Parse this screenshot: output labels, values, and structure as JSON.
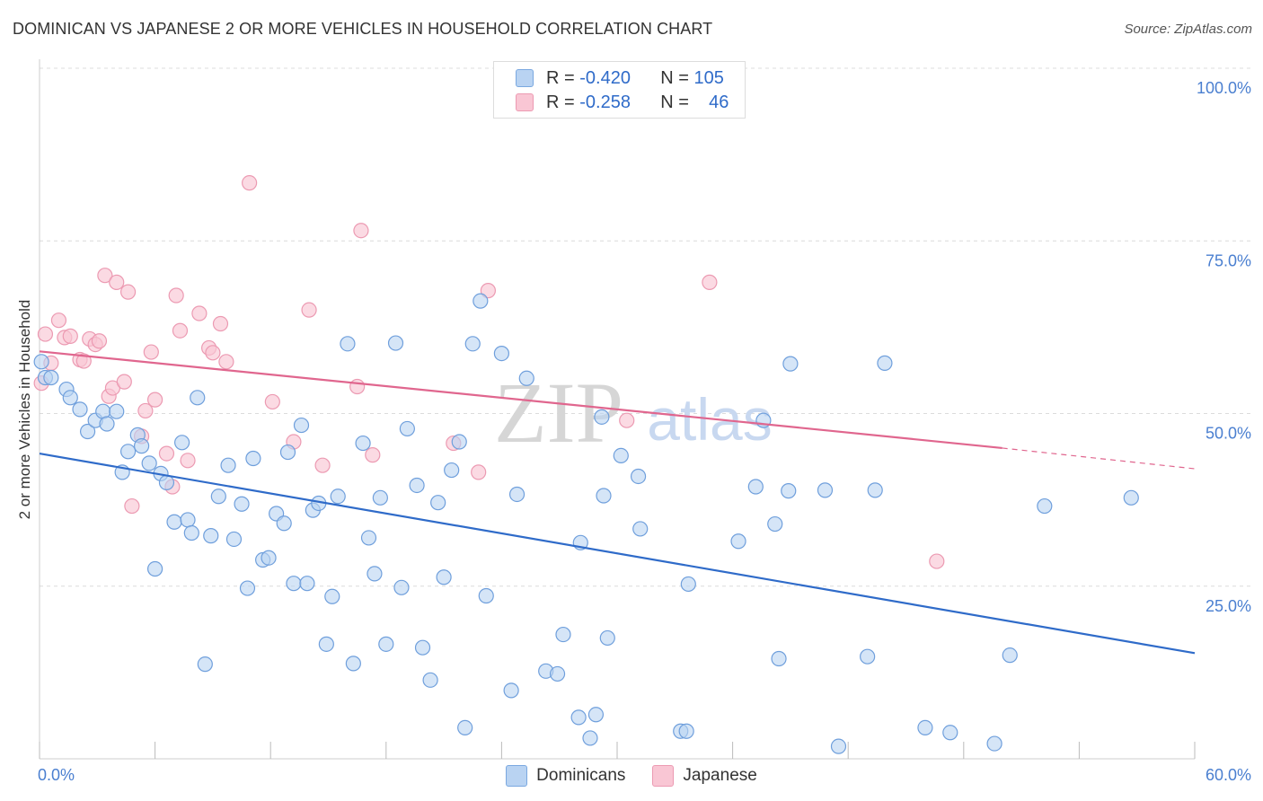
{
  "title": "DOMINICAN VS JAPANESE 2 OR MORE VEHICLES IN HOUSEHOLD CORRELATION CHART",
  "source": "Source: ZipAtlas.com",
  "watermark": {
    "part1": "ZIP",
    "part2": "atlas"
  },
  "stats": [
    {
      "r_label": "R =",
      "r_value": "-0.420",
      "n_label": "N =",
      "n_value": "105"
    },
    {
      "r_label": "R =",
      "r_value": "-0.258",
      "n_label": "N =",
      "n_value": "46"
    }
  ],
  "legend": {
    "dominicans": "Dominicans",
    "japanese": "Japanese"
  },
  "chart_data": {
    "type": "scatter",
    "ylabel": "2 or more Vehicles in Household",
    "xlim": [
      0,
      60
    ],
    "ylim": [
      0,
      100
    ],
    "x_tick_labels": [
      "0.0%",
      "60.0%"
    ],
    "y_tick_labels": [
      {
        "value": 100,
        "label": "100.0%"
      },
      {
        "value": 75,
        "label": "75.0%"
      },
      {
        "value": 50,
        "label": "50.0%"
      },
      {
        "value": 25,
        "label": "25.0%"
      }
    ],
    "colors": {
      "blue": "#2f6bc9",
      "blue_fill": "#b9d3f2",
      "pink": "#e0668e",
      "pink_fill": "#f9c6d4"
    },
    "series": [
      {
        "name": "Dominicans",
        "color": "#2f6bc9",
        "trend": {
          "x0": 0,
          "y0": 44.2,
          "x1": 60,
          "y1": 15.3
        },
        "points": [
          [
            0.1,
            57.5
          ],
          [
            0.3,
            55.2
          ],
          [
            0.6,
            55.2
          ],
          [
            1.4,
            53.5
          ],
          [
            1.6,
            52.3
          ],
          [
            2.1,
            50.6
          ],
          [
            2.5,
            47.4
          ],
          [
            2.9,
            49.0
          ],
          [
            3.3,
            50.3
          ],
          [
            3.5,
            48.5
          ],
          [
            4.0,
            50.3
          ],
          [
            4.3,
            41.5
          ],
          [
            4.6,
            44.5
          ],
          [
            5.1,
            46.9
          ],
          [
            5.3,
            45.3
          ],
          [
            5.7,
            42.8
          ],
          [
            6.0,
            27.5
          ],
          [
            6.3,
            41.3
          ],
          [
            6.6,
            40.0
          ],
          [
            7.0,
            34.3
          ],
          [
            7.4,
            45.8
          ],
          [
            7.7,
            34.6
          ],
          [
            7.9,
            32.7
          ],
          [
            8.2,
            52.3
          ],
          [
            8.6,
            13.7
          ],
          [
            8.9,
            32.3
          ],
          [
            9.3,
            38.0
          ],
          [
            9.8,
            42.5
          ],
          [
            10.1,
            31.8
          ],
          [
            10.5,
            36.9
          ],
          [
            10.8,
            24.7
          ],
          [
            11.1,
            43.5
          ],
          [
            11.6,
            28.8
          ],
          [
            11.9,
            29.1
          ],
          [
            12.3,
            35.5
          ],
          [
            12.7,
            34.1
          ],
          [
            12.9,
            44.4
          ],
          [
            13.2,
            25.4
          ],
          [
            13.6,
            48.3
          ],
          [
            13.9,
            25.4
          ],
          [
            14.2,
            36.0
          ],
          [
            14.5,
            37.0
          ],
          [
            14.9,
            16.6
          ],
          [
            15.2,
            23.5
          ],
          [
            15.5,
            38.0
          ],
          [
            16.0,
            60.1
          ],
          [
            16.3,
            13.8
          ],
          [
            16.8,
            45.7
          ],
          [
            17.1,
            32.0
          ],
          [
            17.4,
            26.8
          ],
          [
            17.7,
            37.8
          ],
          [
            18.0,
            16.6
          ],
          [
            18.5,
            60.2
          ],
          [
            18.8,
            24.8
          ],
          [
            19.1,
            47.8
          ],
          [
            19.6,
            39.6
          ],
          [
            19.9,
            16.1
          ],
          [
            20.3,
            11.4
          ],
          [
            20.7,
            37.1
          ],
          [
            21.0,
            26.3
          ],
          [
            21.4,
            41.8
          ],
          [
            21.8,
            45.9
          ],
          [
            22.1,
            4.5
          ],
          [
            22.5,
            60.1
          ],
          [
            22.9,
            66.3
          ],
          [
            23.2,
            23.6
          ],
          [
            24.0,
            58.7
          ],
          [
            24.5,
            9.9
          ],
          [
            24.8,
            38.3
          ],
          [
            25.3,
            55.1
          ],
          [
            26.3,
            12.7
          ],
          [
            26.9,
            12.3
          ],
          [
            27.2,
            18.0
          ],
          [
            28.0,
            6.0
          ],
          [
            28.1,
            31.3
          ],
          [
            28.6,
            3.0
          ],
          [
            28.9,
            6.4
          ],
          [
            29.2,
            49.5
          ],
          [
            29.3,
            38.1
          ],
          [
            29.5,
            17.5
          ],
          [
            30.2,
            43.9
          ],
          [
            31.1,
            40.9
          ],
          [
            31.2,
            33.3
          ],
          [
            33.3,
            4.0
          ],
          [
            33.6,
            4.0
          ],
          [
            33.7,
            25.3
          ],
          [
            36.3,
            31.5
          ],
          [
            37.2,
            39.4
          ],
          [
            37.6,
            49.0
          ],
          [
            38.2,
            34.0
          ],
          [
            38.4,
            14.5
          ],
          [
            38.9,
            38.8
          ],
          [
            40.8,
            38.9
          ],
          [
            41.5,
            1.8
          ],
          [
            43.0,
            14.8
          ],
          [
            43.4,
            38.9
          ],
          [
            46.0,
            4.5
          ],
          [
            47.3,
            3.8
          ],
          [
            49.6,
            2.2
          ],
          [
            50.4,
            15.0
          ],
          [
            52.2,
            36.6
          ],
          [
            56.7,
            37.8
          ],
          [
            43.9,
            57.3
          ],
          [
            39.0,
            57.2
          ]
        ]
      },
      {
        "name": "Japanese",
        "color": "#e0668e",
        "trend": {
          "x0": 0,
          "y0": 59.0,
          "x1": 50,
          "y1": 45.0,
          "dash_x1": 60,
          "dash_y1": 42.0
        },
        "points": [
          [
            0.1,
            54.4
          ],
          [
            0.3,
            61.5
          ],
          [
            0.6,
            57.3
          ],
          [
            1.0,
            63.5
          ],
          [
            1.3,
            61.0
          ],
          [
            1.6,
            61.2
          ],
          [
            2.1,
            57.8
          ],
          [
            2.3,
            57.6
          ],
          [
            2.6,
            60.8
          ],
          [
            2.9,
            60.0
          ],
          [
            3.1,
            60.5
          ],
          [
            3.4,
            70.0
          ],
          [
            3.6,
            52.5
          ],
          [
            3.8,
            53.7
          ],
          [
            4.0,
            69.0
          ],
          [
            4.4,
            54.6
          ],
          [
            4.6,
            67.6
          ],
          [
            4.8,
            36.6
          ],
          [
            5.3,
            46.7
          ],
          [
            5.5,
            50.4
          ],
          [
            5.8,
            58.9
          ],
          [
            6.0,
            52.0
          ],
          [
            6.6,
            44.2
          ],
          [
            6.9,
            39.4
          ],
          [
            7.1,
            67.1
          ],
          [
            7.3,
            62.0
          ],
          [
            7.7,
            43.2
          ],
          [
            8.3,
            64.5
          ],
          [
            8.8,
            59.5
          ],
          [
            9.0,
            58.8
          ],
          [
            9.4,
            63.0
          ],
          [
            9.7,
            57.5
          ],
          [
            10.9,
            83.4
          ],
          [
            12.1,
            51.7
          ],
          [
            13.2,
            45.9
          ],
          [
            14.0,
            65.0
          ],
          [
            14.7,
            42.5
          ],
          [
            16.5,
            53.9
          ],
          [
            16.7,
            76.5
          ],
          [
            17.3,
            44.0
          ],
          [
            21.5,
            45.7
          ],
          [
            22.8,
            41.5
          ],
          [
            23.3,
            67.8
          ],
          [
            30.5,
            49.0
          ],
          [
            34.8,
            69.0
          ],
          [
            46.6,
            28.6
          ]
        ]
      }
    ]
  }
}
